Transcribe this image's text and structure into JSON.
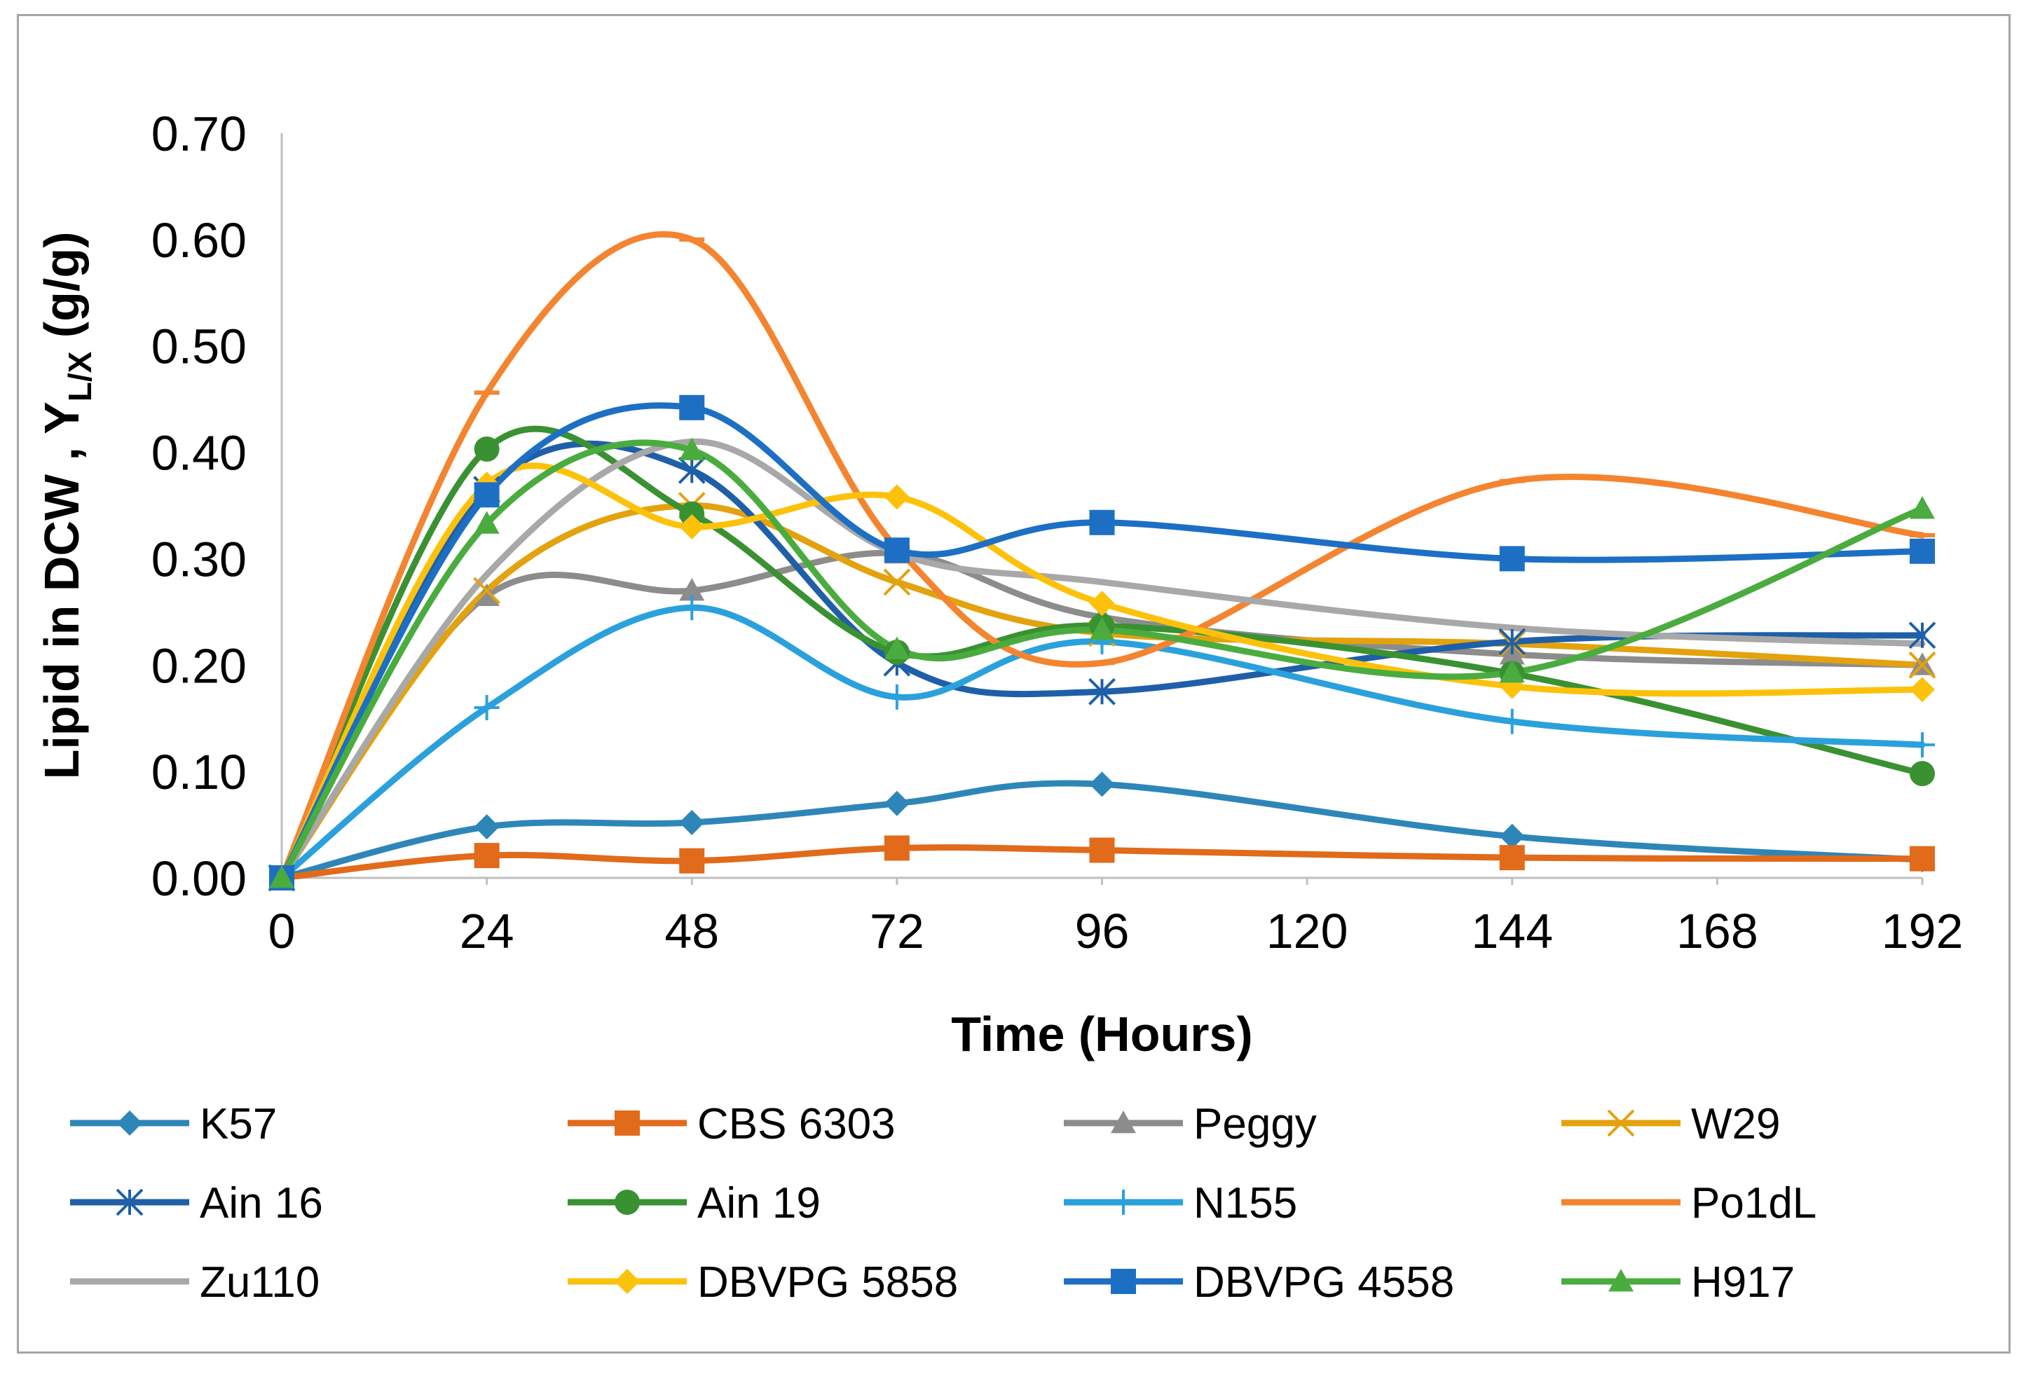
{
  "chart_data": {
    "type": "line",
    "title": "",
    "xlabel": "Time (Hours)",
    "ylabel": {
      "main": "Lipid in DCW , Y",
      "sub": "L/X",
      "unit": " (g/g)"
    },
    "xlim": [
      0,
      192
    ],
    "ylim": [
      0,
      0.7
    ],
    "xticks": [
      "0",
      "24",
      "48",
      "72",
      "96",
      "120",
      "144",
      "168",
      "192"
    ],
    "yticks": [
      "0.00",
      "0.10",
      "0.20",
      "0.30",
      "0.40",
      "0.50",
      "0.60",
      "0.70"
    ],
    "grid": false,
    "legend_position": "bottom",
    "x": [
      0,
      24,
      48,
      72,
      96,
      144,
      192
    ],
    "series": [
      {
        "name": "K57",
        "color": "#2e86b8",
        "marker": "diamond",
        "values": [
          0.0,
          0.048,
          0.052,
          0.07,
          0.088,
          0.039,
          0.017
        ]
      },
      {
        "name": "CBS 6303",
        "color": "#e16a1b",
        "marker": "square",
        "values": [
          0.0,
          0.021,
          0.016,
          0.028,
          0.026,
          0.019,
          0.018
        ]
      },
      {
        "name": "Peggy",
        "color": "#8c8c8c",
        "marker": "triangle",
        "values": [
          0.0,
          0.265,
          0.27,
          0.305,
          0.245,
          0.21,
          0.2
        ]
      },
      {
        "name": "W29",
        "color": "#e3a20e",
        "marker": "x",
        "values": [
          0.0,
          0.27,
          0.35,
          0.278,
          0.23,
          0.22,
          0.2
        ]
      },
      {
        "name": "Ain 16",
        "color": "#1f5fa8",
        "marker": "star",
        "values": [
          0.0,
          0.365,
          0.383,
          0.202,
          0.175,
          0.222,
          0.228
        ]
      },
      {
        "name": "Ain 19",
        "color": "#3a9132",
        "marker": "circle",
        "values": [
          0.0,
          0.403,
          0.342,
          0.212,
          0.237,
          0.192,
          0.098
        ]
      },
      {
        "name": "N155",
        "color": "#2aa1dc",
        "marker": "plus",
        "values": [
          0.0,
          0.16,
          0.254,
          0.17,
          0.222,
          0.147,
          0.125
        ]
      },
      {
        "name": "Po1dL",
        "color": "#f4842f",
        "marker": "dash",
        "values": [
          0.0,
          0.456,
          0.6,
          0.31,
          0.202,
          0.373,
          0.322
        ]
      },
      {
        "name": "Zu110",
        "color": "#a8a8a8",
        "marker": "none",
        "values": [
          0.0,
          0.285,
          0.41,
          0.305,
          0.278,
          0.235,
          0.22
        ]
      },
      {
        "name": "DBVPG 5858",
        "color": "#fcc20b",
        "marker": "diamond",
        "values": [
          0.0,
          0.37,
          0.33,
          0.358,
          0.258,
          0.18,
          0.177
        ]
      },
      {
        "name": "DBVPG 4558",
        "color": "#1d6fc4",
        "marker": "square",
        "values": [
          0.0,
          0.36,
          0.442,
          0.308,
          0.334,
          0.3,
          0.307
        ]
      },
      {
        "name": "H917",
        "color": "#4aac3e",
        "marker": "triangle",
        "values": [
          0.0,
          0.333,
          0.402,
          0.215,
          0.233,
          0.193,
          0.347
        ]
      }
    ]
  }
}
